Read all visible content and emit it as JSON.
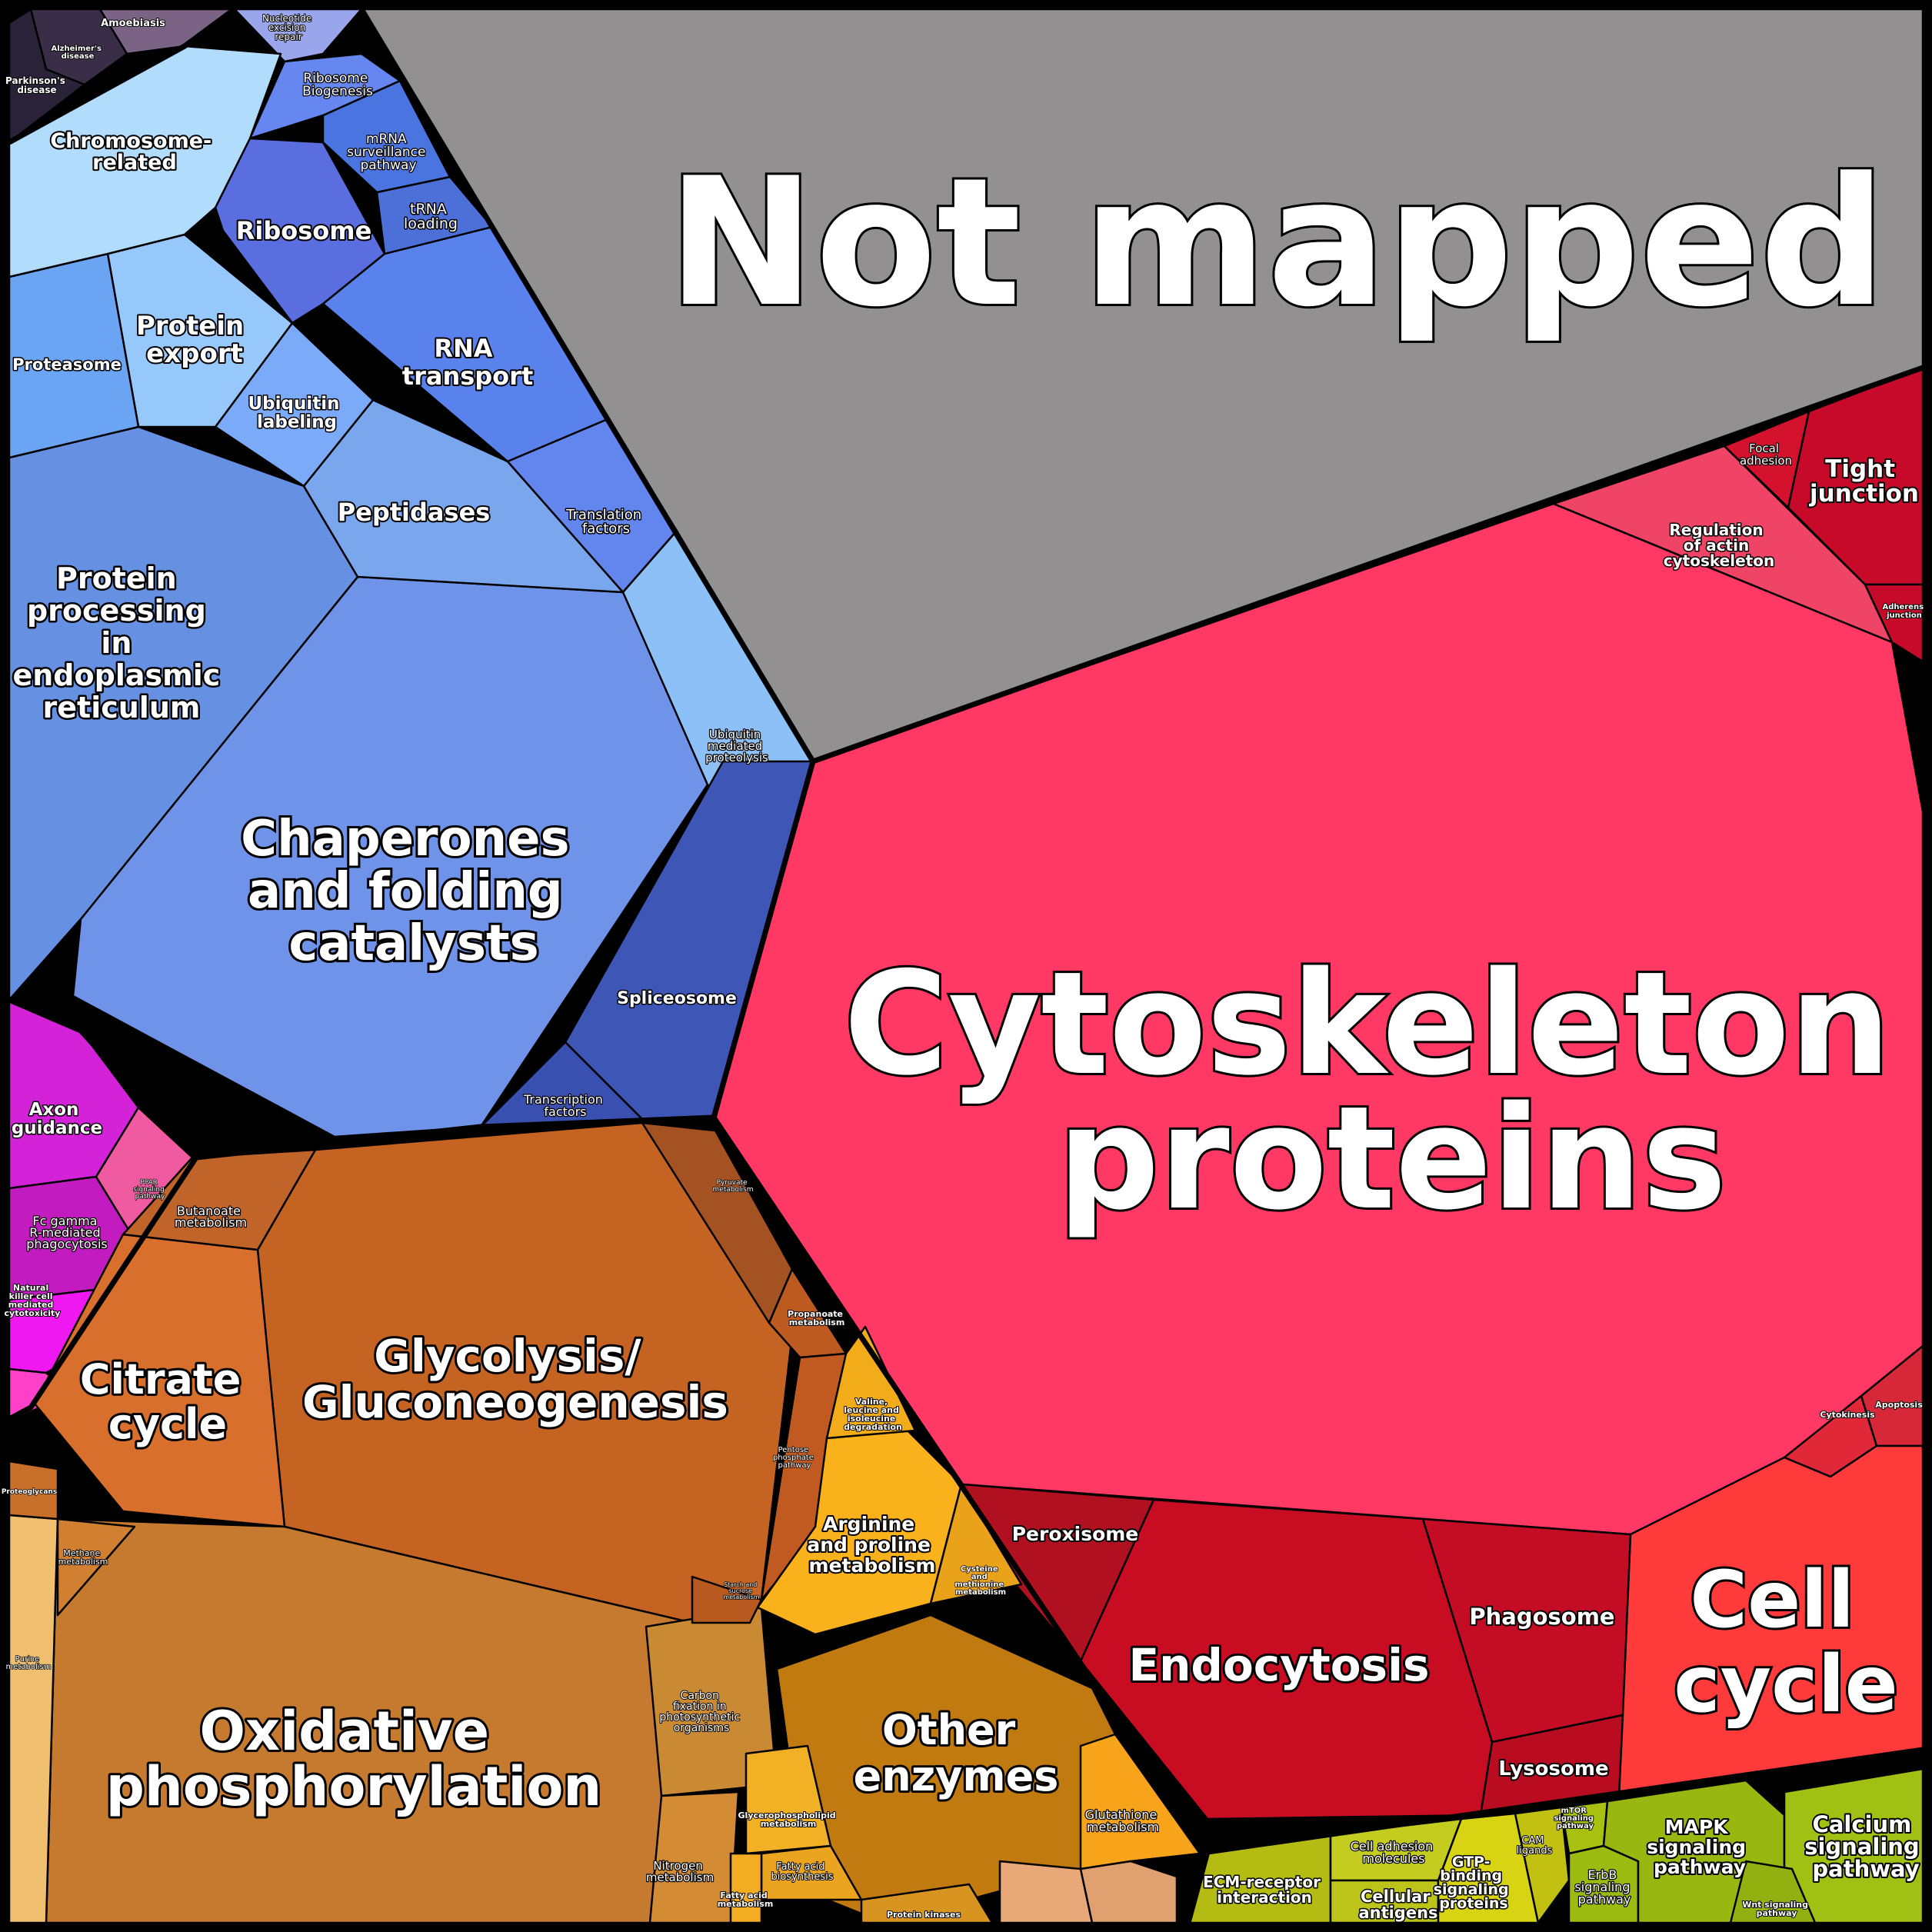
{
  "title": "",
  "colors": {
    "not_mapped": "#929090",
    "cellular_processes": "#ff3864",
    "genetic_info_processing": "#6f93e8",
    "metabolism": "#c8722a",
    "organismal_systems": "#d322d8",
    "environmental_info": "#a6c012",
    "human_diseases": "#3a2d44"
  },
  "cells": {
    "not_mapped": "Not mapped",
    "cytoskeleton": [
      "Cytoskeleton",
      "proteins"
    ],
    "tight_junction": [
      "Tight",
      "junction"
    ],
    "focal_adhesion": [
      "Focal",
      "adhesion"
    ],
    "regulation_actin": [
      "Regulation",
      "of actin",
      "cytoskeleton"
    ],
    "adherens_junction": [
      "Adherens",
      "junction"
    ],
    "cytokinesis": "Cytokinesis",
    "apoptosis": "Apoptosis",
    "cell_cycle": [
      "Cell",
      "cycle"
    ],
    "peroxisome": "Peroxisome",
    "endocytosis": "Endocytosis",
    "phagosome": "Phagosome",
    "lysosome": "Lysosome",
    "chaperones": [
      "Chaperones",
      "and folding",
      "catalysts"
    ],
    "protein_processing_er": [
      "Protein",
      "processing",
      "in",
      "endoplasmic",
      "reticulum"
    ],
    "peptidases": "Peptidases",
    "ubiquitin_labeling": [
      "Ubiquitin",
      "labeling"
    ],
    "protein_export": [
      "Protein",
      "export"
    ],
    "proteasome": "Proteasome",
    "rna_transport": [
      "RNA",
      "transport"
    ],
    "ribosome": "Ribosome",
    "trna_loading": [
      "tRNA",
      "loading"
    ],
    "mrna_surveillance": [
      "mRNA",
      "surveillance",
      "pathway"
    ],
    "ribosome_biogenesis": [
      "Ribosome",
      "Biogenesis"
    ],
    "nucleotide_excision": [
      "Nucleotide",
      "excision",
      "repair"
    ],
    "translation_factors": [
      "Translation",
      "factors"
    ],
    "ubiquitin_proteolysis": [
      "Ubiquitin",
      "mediated",
      "proteolysis"
    ],
    "spliceosome": "Spliceosome",
    "transcription_factors": [
      "Transcription",
      "factors"
    ],
    "chromosome_related": [
      "Chromosome-",
      "related"
    ],
    "amoebiasis": "Amoebiasis",
    "alzheimers": [
      "Alzheimer's",
      "disease"
    ],
    "parkinsons": [
      "Parkinson's",
      "disease"
    ],
    "glycolysis": [
      "Glycolysis/",
      "Gluconeogenesis"
    ],
    "citrate_cycle": [
      "Citrate",
      "cycle"
    ],
    "butanoate": [
      "Butanoate",
      "metabolism"
    ],
    "pyruvate": [
      "Pyruvate",
      "metabolism"
    ],
    "propanoate": [
      "Propanoate",
      "metabolism"
    ],
    "pentose_phosphate": [
      "Pentose",
      "phosphate",
      "pathway"
    ],
    "oxidative_phos": [
      "Oxidative",
      "phosphorylation"
    ],
    "methane": [
      "Methane",
      "metabolism"
    ],
    "purine": [
      "Purine",
      "metabolism"
    ],
    "carbon_fixation": [
      "Carbon",
      "fixation in",
      "photosynthetic",
      "organisms"
    ],
    "nitrogen": [
      "Nitrogen",
      "metabolism"
    ],
    "starch_sucrose": [
      "Starch and",
      "sucrose",
      "metabolism"
    ],
    "arginine_proline": [
      "Arginine",
      "and proline",
      "metabolism"
    ],
    "valine_leucine": [
      "Valine,",
      "leucine and",
      "isoleucine",
      "degradation"
    ],
    "cysteine_methionine": [
      "Cysteine",
      "and",
      "methionine",
      "metabolism"
    ],
    "other_enzymes": [
      "Other",
      "enzymes"
    ],
    "glutathione": [
      "Glutathione",
      "metabolism"
    ],
    "glycerophospholipid": [
      "Glycerophospholipid",
      "metabolism"
    ],
    "fatty_acid_biosynthesis": [
      "Fatty acid",
      "biosynthesis"
    ],
    "fatty_acid_metabolism": [
      "Fatty acid",
      "metabolism"
    ],
    "protein_kinases": "Protein kinases",
    "axon_guidance": [
      "Axon",
      "guidance"
    ],
    "fc_gamma": [
      "Fc gamma",
      "R-mediated",
      "phagocytosis"
    ],
    "natural_killer": [
      "Natural",
      "killer cell",
      "mediated",
      "cytotoxicity"
    ],
    "ppar": [
      "PPAR",
      "signaling",
      "pathway"
    ],
    "ecm_receptor": [
      "ECM-receptor",
      "interaction"
    ],
    "cell_adhesion_molecules": [
      "Cell adhesion",
      "molecules"
    ],
    "cellular_antigens": [
      "Cellular",
      "antigens"
    ],
    "gtp_binding": [
      "GTP-",
      "binding",
      "signaling",
      "proteins"
    ],
    "cam_ligands": [
      "CAM",
      "ligands"
    ],
    "mtor": [
      "mTOR",
      "signaling",
      "pathway"
    ],
    "erbb": [
      "ErbB",
      "signaling",
      "pathway"
    ],
    "mapk": [
      "MAPK",
      "signaling",
      "pathway"
    ],
    "calcium": [
      "Calcium",
      "signaling",
      "pathway"
    ],
    "wnt": [
      "Wnt signaling",
      "pathway"
    ],
    "proteoglycans": "Proteoglycans"
  }
}
